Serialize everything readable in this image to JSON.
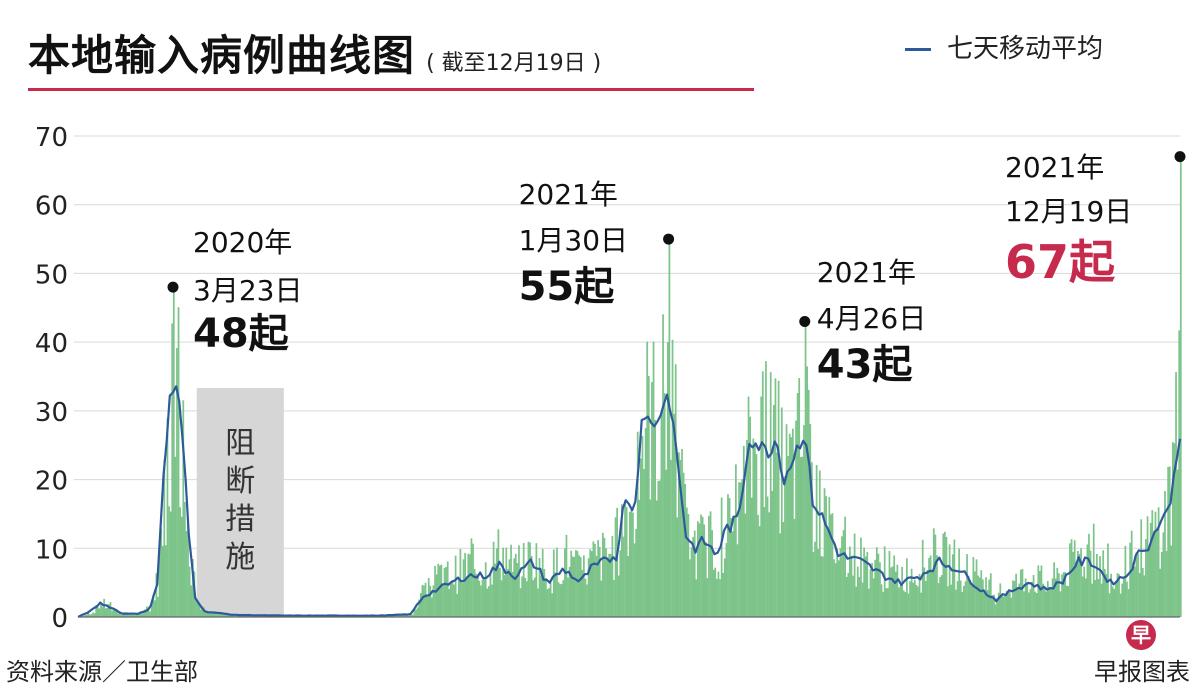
{
  "header": {
    "title": "本地输入病例曲线图",
    "subtitle": "( 截至12月19日 )"
  },
  "legend": {
    "label": "七天移动平均"
  },
  "footer": {
    "source": "资料来源／卫生部",
    "brand": "早报图表",
    "logo_char": "早"
  },
  "colors": {
    "bars": "#7cc48a",
    "line": "#2e5a9c",
    "shade": "#d6d6d6",
    "accent": "#c62a4d",
    "grid": "#d9d9d9"
  },
  "chart_data": {
    "type": "bar",
    "title": "本地输入病例曲线图",
    "subtitle": "( 截至12月19日 )",
    "x_start": "2020-01-23",
    "x_end": "2021-12-19",
    "ylim": [
      0,
      70
    ],
    "yticks": [
      0,
      10,
      20,
      30,
      40,
      50,
      60,
      70
    ],
    "grid": true,
    "legend_position": "top-right",
    "series": [
      {
        "name": "七天移动平均",
        "type": "line",
        "points": [
          [
            "2020-01-23",
            0
          ],
          [
            "2020-02-01",
            1
          ],
          [
            "2020-02-06",
            2
          ],
          [
            "2020-02-12",
            1.5
          ],
          [
            "2020-02-20",
            0.5
          ],
          [
            "2020-03-01",
            0.5
          ],
          [
            "2020-03-08",
            1
          ],
          [
            "2020-03-13",
            5
          ],
          [
            "2020-03-17",
            20
          ],
          [
            "2020-03-21",
            32
          ],
          [
            "2020-03-23",
            33
          ],
          [
            "2020-03-26",
            33
          ],
          [
            "2020-03-29",
            26
          ],
          [
            "2020-04-02",
            12
          ],
          [
            "2020-04-06",
            3
          ],
          [
            "2020-04-12",
            0.8
          ],
          [
            "2020-05-01",
            0.3
          ],
          [
            "2020-06-01",
            0.2
          ],
          [
            "2020-07-01",
            0.2
          ],
          [
            "2020-08-01",
            0.2
          ],
          [
            "2020-08-20",
            0.4
          ],
          [
            "2020-08-28",
            3
          ],
          [
            "2020-09-06",
            4
          ],
          [
            "2020-09-15",
            5
          ],
          [
            "2020-09-25",
            6
          ],
          [
            "2020-10-06",
            6
          ],
          [
            "2020-10-15",
            7.5
          ],
          [
            "2020-10-25",
            6
          ],
          [
            "2020-11-05",
            8
          ],
          [
            "2020-11-15",
            5
          ],
          [
            "2020-11-25",
            7
          ],
          [
            "2020-12-05",
            5
          ],
          [
            "2020-12-12",
            7
          ],
          [
            "2020-12-20",
            8
          ],
          [
            "2020-12-28",
            9
          ],
          [
            "2021-01-03",
            18
          ],
          [
            "2021-01-08",
            15
          ],
          [
            "2021-01-13",
            28
          ],
          [
            "2021-01-18",
            29
          ],
          [
            "2021-01-23",
            28
          ],
          [
            "2021-01-28",
            33
          ],
          [
            "2021-02-01",
            30
          ],
          [
            "2021-02-05",
            22
          ],
          [
            "2021-02-10",
            12
          ],
          [
            "2021-02-15",
            10
          ],
          [
            "2021-02-22",
            11
          ],
          [
            "2021-03-01",
            9
          ],
          [
            "2021-03-08",
            13
          ],
          [
            "2021-03-15",
            14
          ],
          [
            "2021-03-22",
            26
          ],
          [
            "2021-03-28",
            25
          ],
          [
            "2021-04-03",
            24
          ],
          [
            "2021-04-08",
            26
          ],
          [
            "2021-04-13",
            20
          ],
          [
            "2021-04-20",
            24
          ],
          [
            "2021-04-26",
            27
          ],
          [
            "2021-05-01",
            17
          ],
          [
            "2021-05-08",
            14
          ],
          [
            "2021-05-18",
            9
          ],
          [
            "2021-06-01",
            8
          ],
          [
            "2021-06-15",
            6
          ],
          [
            "2021-06-25",
            5
          ],
          [
            "2021-07-08",
            6
          ],
          [
            "2021-07-20",
            8
          ],
          [
            "2021-08-01",
            7
          ],
          [
            "2021-08-15",
            4
          ],
          [
            "2021-08-25",
            2.5
          ],
          [
            "2021-09-05",
            4
          ],
          [
            "2021-09-15",
            5
          ],
          [
            "2021-09-25",
            4
          ],
          [
            "2021-10-05",
            5
          ],
          [
            "2021-10-15",
            8
          ],
          [
            "2021-10-25",
            8
          ],
          [
            "2021-11-05",
            5
          ],
          [
            "2021-11-15",
            6
          ],
          [
            "2021-11-25",
            10
          ],
          [
            "2021-12-01",
            11
          ],
          [
            "2021-12-06",
            14
          ],
          [
            "2021-12-11",
            15
          ],
          [
            "2021-12-15",
            20
          ],
          [
            "2021-12-19",
            27
          ]
        ]
      }
    ],
    "bars_envelope": [
      [
        "2020-01-23",
        0
      ],
      [
        "2020-02-01",
        1
      ],
      [
        "2020-02-06",
        3
      ],
      [
        "2020-02-12",
        2
      ],
      [
        "2020-02-20",
        0.6
      ],
      [
        "2020-03-01",
        0.5
      ],
      [
        "2020-03-08",
        2
      ],
      [
        "2020-03-13",
        8
      ],
      [
        "2020-03-17",
        25
      ],
      [
        "2020-03-21",
        40
      ],
      [
        "2020-03-23",
        48
      ],
      [
        "2020-03-26",
        44
      ],
      [
        "2020-03-29",
        30
      ],
      [
        "2020-04-02",
        14
      ],
      [
        "2020-04-06",
        4
      ],
      [
        "2020-04-12",
        1
      ],
      [
        "2020-05-01",
        0.3
      ],
      [
        "2020-06-01",
        0.3
      ],
      [
        "2020-07-01",
        0.3
      ],
      [
        "2020-08-01",
        0.3
      ],
      [
        "2020-08-20",
        0.5
      ],
      [
        "2020-08-28",
        5
      ],
      [
        "2020-09-06",
        8
      ],
      [
        "2020-09-15",
        9
      ],
      [
        "2020-09-25",
        11
      ],
      [
        "2020-10-06",
        10
      ],
      [
        "2020-10-15",
        14
      ],
      [
        "2020-10-25",
        10
      ],
      [
        "2020-11-05",
        13
      ],
      [
        "2020-11-15",
        9
      ],
      [
        "2020-11-25",
        13
      ],
      [
        "2020-12-05",
        9
      ],
      [
        "2020-12-12",
        12
      ],
      [
        "2020-12-20",
        13
      ],
      [
        "2020-12-28",
        15
      ],
      [
        "2021-01-03",
        24
      ],
      [
        "2021-01-08",
        21
      ],
      [
        "2021-01-13",
        40
      ],
      [
        "2021-01-18",
        44
      ],
      [
        "2021-01-23",
        40
      ],
      [
        "2021-01-28",
        48
      ],
      [
        "2021-01-30",
        55
      ],
      [
        "2021-02-01",
        42
      ],
      [
        "2021-02-05",
        30
      ],
      [
        "2021-02-10",
        18
      ],
      [
        "2021-02-15",
        15
      ],
      [
        "2021-02-22",
        16
      ],
      [
        "2021-03-01",
        14
      ],
      [
        "2021-03-08",
        19
      ],
      [
        "2021-03-15",
        21
      ],
      [
        "2021-03-22",
        35
      ],
      [
        "2021-03-28",
        37
      ],
      [
        "2021-04-03",
        34
      ],
      [
        "2021-04-08",
        36
      ],
      [
        "2021-04-13",
        30
      ],
      [
        "2021-04-20",
        33
      ],
      [
        "2021-04-26",
        43
      ],
      [
        "2021-05-01",
        24
      ],
      [
        "2021-05-08",
        20
      ],
      [
        "2021-05-18",
        14
      ],
      [
        "2021-06-01",
        12
      ],
      [
        "2021-06-15",
        10
      ],
      [
        "2021-06-25",
        9
      ],
      [
        "2021-07-08",
        10
      ],
      [
        "2021-07-20",
        13
      ],
      [
        "2021-08-01",
        11
      ],
      [
        "2021-08-15",
        7
      ],
      [
        "2021-08-25",
        5
      ],
      [
        "2021-09-05",
        7
      ],
      [
        "2021-09-15",
        9
      ],
      [
        "2021-09-25",
        7
      ],
      [
        "2021-10-05",
        9
      ],
      [
        "2021-10-15",
        13
      ],
      [
        "2021-10-25",
        13
      ],
      [
        "2021-11-05",
        9
      ],
      [
        "2021-11-15",
        10
      ],
      [
        "2021-11-25",
        15
      ],
      [
        "2021-12-01",
        17
      ],
      [
        "2021-12-06",
        20
      ],
      [
        "2021-12-11",
        22
      ],
      [
        "2021-12-15",
        33
      ],
      [
        "2021-12-19",
        67
      ]
    ],
    "shaded_periods": [
      {
        "start": "2020-04-07",
        "end": "2020-06-01",
        "label": "阻断措施"
      }
    ],
    "annotations": [
      {
        "date": "2020-03-23",
        "value": 48,
        "year": "2020年",
        "day": "3月23日",
        "count": "48起",
        "highlight": false
      },
      {
        "date": "2021-01-30",
        "value": 55,
        "year": "2021年",
        "day": "1月30日",
        "count": "55起",
        "highlight": false
      },
      {
        "date": "2021-04-26",
        "value": 43,
        "year": "2021年",
        "day": "4月26日",
        "count": "43起",
        "highlight": false
      },
      {
        "date": "2021-12-19",
        "value": 67,
        "year": "2021年",
        "day": "12月19日",
        "count": "67起",
        "highlight": true
      }
    ]
  }
}
